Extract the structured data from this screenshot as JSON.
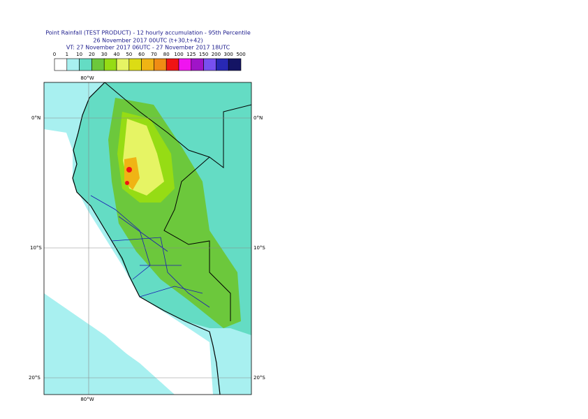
{
  "header": {
    "title": "Point Rainfall (TEST PRODUCT) - 12 hourly accumulation - 95th Percentile",
    "subtitle": "26 November 2017 00UTC (t+30,t+42)",
    "validity": "VT: 27 November 2017 06UTC - 27 November 2017 18UTC"
  },
  "legend": {
    "thresholds": [
      0,
      1,
      10,
      20,
      30,
      40,
      50,
      60,
      70,
      80,
      100,
      125,
      150,
      200,
      300,
      500
    ],
    "colors": [
      "#ffffff",
      "#a8f0f0",
      "#64dcc4",
      "#6cc83c",
      "#96dc14",
      "#e6f464",
      "#dcdc14",
      "#f0b414",
      "#f08c14",
      "#f01414",
      "#f014f0",
      "#a014c8",
      "#7850f0",
      "#2828b4",
      "#141464"
    ]
  },
  "map": {
    "lon_label": "80°W",
    "lat_labels": [
      "0°N",
      "10°S",
      "20°S"
    ]
  }
}
